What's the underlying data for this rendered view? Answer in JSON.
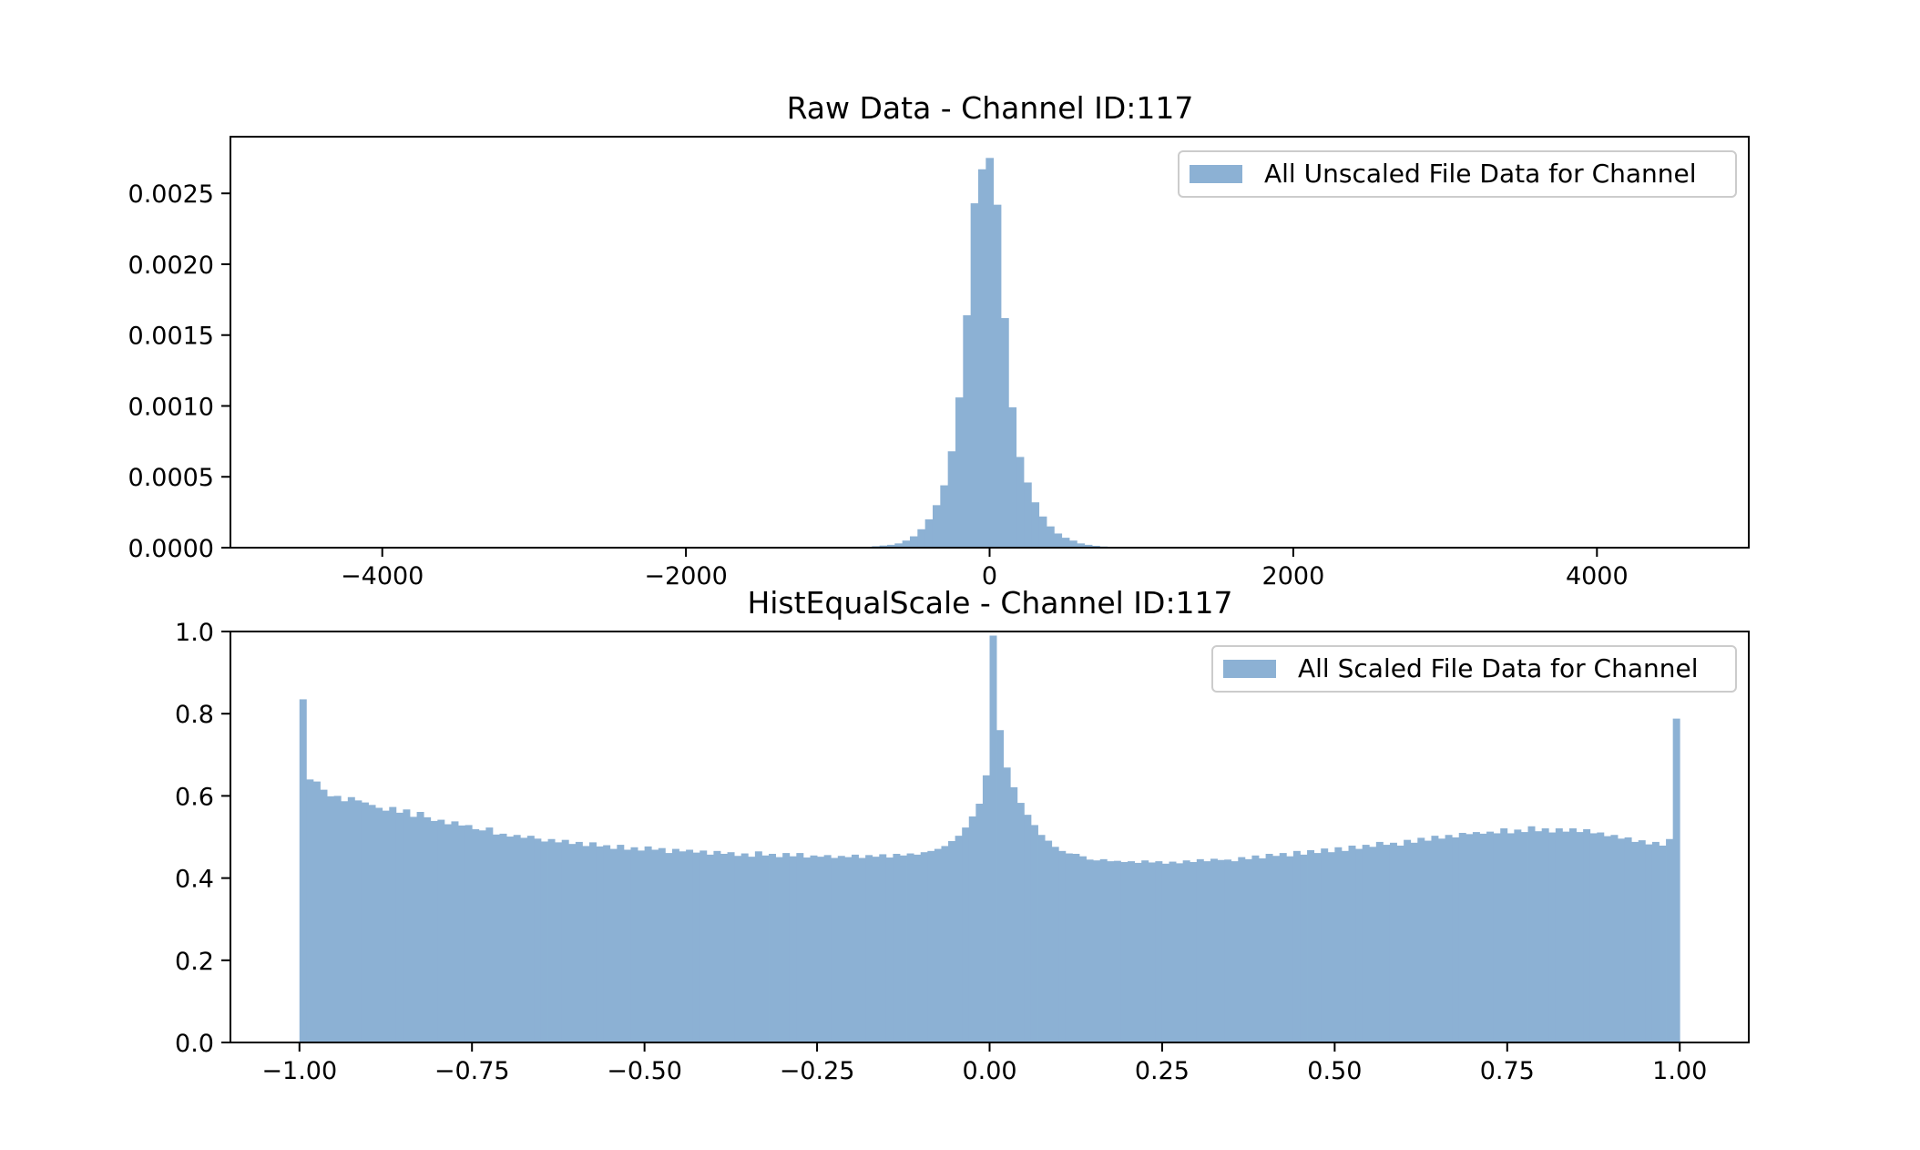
{
  "colors": {
    "bar": "#8cb1d4",
    "axis": "#000000",
    "legend_border": "#cccccc"
  },
  "chart_data": [
    {
      "type": "bar",
      "title": "Raw Data - Channel ID:117",
      "legend": {
        "label": "All Unscaled File Data for Channel",
        "placement": "top-right"
      },
      "xlim": [
        -5000,
        5000
      ],
      "ylim": [
        0,
        0.0029
      ],
      "xticks": [
        -4000,
        -2000,
        0,
        2000,
        4000
      ],
      "xtick_labels": [
        "−4000",
        "−2000",
        "0",
        "2000",
        "4000"
      ],
      "yticks": [
        0,
        0.0005,
        0.001,
        0.0015,
        0.002,
        0.0025
      ],
      "ytick_labels": [
        "0.0000",
        "0.0005",
        "0.0010",
        "0.0015",
        "0.0020",
        "0.0025"
      ],
      "grid": false,
      "bin_width": 50,
      "x": [
        -900,
        -850,
        -800,
        -750,
        -700,
        -650,
        -600,
        -550,
        -500,
        -450,
        -400,
        -350,
        -300,
        -250,
        -200,
        -150,
        -100,
        -50,
        0,
        50,
        100,
        150,
        200,
        250,
        300,
        350,
        400,
        450,
        500,
        550,
        600,
        650,
        700,
        750,
        800,
        850,
        900
      ],
      "values": [
        2e-06,
        4e-06,
        6e-06,
        1e-05,
        1.5e-05,
        2e-05,
        3e-05,
        5e-05,
        8e-05,
        0.00013,
        0.0002,
        0.0003,
        0.00044,
        0.00068,
        0.00106,
        0.00164,
        0.00243,
        0.00267,
        0.00275,
        0.00242,
        0.00162,
        0.00099,
        0.00064,
        0.00046,
        0.00032,
        0.00022,
        0.00015,
        0.0001,
        7e-05,
        5e-05,
        3e-05,
        2e-05,
        1.3e-05,
        8e-06,
        5e-06,
        3e-06,
        2e-06
      ]
    },
    {
      "type": "bar",
      "title": "HistEqualScale - Channel ID:117",
      "legend": {
        "label": "All Scaled File Data for Channel",
        "placement": "top-right"
      },
      "xlim": [
        -1.1,
        1.1
      ],
      "ylim": [
        0,
        1.0
      ],
      "xticks": [
        -1,
        -0.75,
        -0.5,
        -0.25,
        0,
        0.25,
        0.5,
        0.75,
        1
      ],
      "xtick_labels": [
        "−1.00",
        "−0.75",
        "−0.50",
        "−0.25",
        "0.00",
        "0.25",
        "0.50",
        "0.75",
        "1.00"
      ],
      "yticks": [
        0,
        0.2,
        0.4,
        0.6,
        0.8,
        1.0
      ],
      "ytick_labels": [
        "0.0",
        "0.2",
        "0.4",
        "0.6",
        "0.8",
        "1.0"
      ],
      "grid": false,
      "bin_range": [
        -1,
        1
      ],
      "bins": 200,
      "values": [
        0.835,
        0.64,
        0.635,
        0.615,
        0.599,
        0.6,
        0.587,
        0.597,
        0.589,
        0.584,
        0.578,
        0.571,
        0.564,
        0.573,
        0.559,
        0.567,
        0.549,
        0.561,
        0.548,
        0.539,
        0.542,
        0.531,
        0.538,
        0.528,
        0.529,
        0.519,
        0.516,
        0.523,
        0.506,
        0.508,
        0.501,
        0.505,
        0.498,
        0.503,
        0.496,
        0.489,
        0.495,
        0.487,
        0.493,
        0.483,
        0.488,
        0.478,
        0.487,
        0.477,
        0.48,
        0.471,
        0.481,
        0.469,
        0.475,
        0.467,
        0.477,
        0.469,
        0.473,
        0.461,
        0.471,
        0.465,
        0.469,
        0.462,
        0.467,
        0.457,
        0.466,
        0.459,
        0.463,
        0.454,
        0.46,
        0.452,
        0.465,
        0.455,
        0.459,
        0.451,
        0.461,
        0.453,
        0.461,
        0.45,
        0.455,
        0.452,
        0.456,
        0.449,
        0.454,
        0.451,
        0.457,
        0.449,
        0.456,
        0.452,
        0.458,
        0.45,
        0.459,
        0.455,
        0.46,
        0.457,
        0.463,
        0.466,
        0.471,
        0.478,
        0.49,
        0.503,
        0.523,
        0.55,
        0.581,
        0.65,
        0.99,
        0.76,
        0.669,
        0.621,
        0.583,
        0.554,
        0.529,
        0.505,
        0.491,
        0.476,
        0.466,
        0.46,
        0.459,
        0.453,
        0.445,
        0.443,
        0.446,
        0.441,
        0.442,
        0.439,
        0.441,
        0.437,
        0.443,
        0.438,
        0.441,
        0.435,
        0.44,
        0.436,
        0.443,
        0.439,
        0.446,
        0.441,
        0.447,
        0.444,
        0.445,
        0.441,
        0.451,
        0.446,
        0.455,
        0.448,
        0.459,
        0.454,
        0.461,
        0.453,
        0.466,
        0.457,
        0.468,
        0.461,
        0.472,
        0.463,
        0.475,
        0.466,
        0.479,
        0.471,
        0.481,
        0.476,
        0.488,
        0.481,
        0.486,
        0.479,
        0.493,
        0.486,
        0.498,
        0.491,
        0.503,
        0.496,
        0.505,
        0.499,
        0.51,
        0.507,
        0.512,
        0.508,
        0.513,
        0.509,
        0.521,
        0.509,
        0.518,
        0.512,
        0.526,
        0.514,
        0.521,
        0.511,
        0.521,
        0.513,
        0.521,
        0.512,
        0.519,
        0.509,
        0.511,
        0.502,
        0.505,
        0.496,
        0.499,
        0.488,
        0.492,
        0.482,
        0.488,
        0.479,
        0.495,
        0.788
      ]
    }
  ]
}
